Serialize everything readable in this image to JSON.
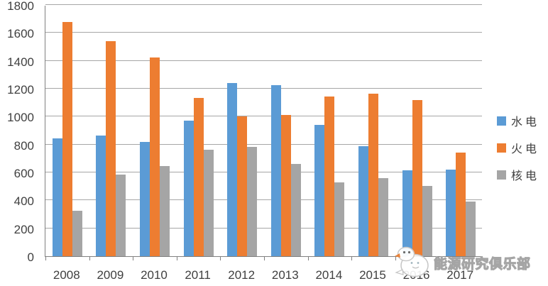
{
  "chart_data": {
    "type": "bar",
    "title": "",
    "xlabel": "",
    "ylabel": "",
    "categories": [
      "2008",
      "2009",
      "2010",
      "2011",
      "2012",
      "2013",
      "2014",
      "2015",
      "2016",
      "2017"
    ],
    "series": [
      {
        "key": "hydro",
        "name": "水电",
        "color": "#5B9BD5",
        "values": [
          845,
          862,
          818,
          970,
          1239,
          1223,
          941,
          789,
          615,
          618
        ]
      },
      {
        "key": "thermal",
        "name": "火电",
        "color": "#ED7D31",
        "values": [
          1680,
          1541,
          1426,
          1135,
          1001,
          1014,
          1143,
          1164,
          1119,
          740
        ]
      },
      {
        "key": "nuclear",
        "name": "核电",
        "color": "#A5A5A5",
        "values": [
          325,
          585,
          645,
          762,
          784,
          660,
          530,
          560,
          506,
          390
        ]
      }
    ],
    "ylim": [
      0,
      1800
    ],
    "ytick_step": 200,
    "yticks": [
      0,
      200,
      400,
      600,
      800,
      1000,
      1200,
      1400,
      1600,
      1800
    ],
    "grid": "horizontal",
    "legend_position": "right"
  },
  "watermark": {
    "text": "能源研究俱乐部",
    "icon": "chick-mascot-icon"
  },
  "colors": {
    "axis_line": "#808080",
    "gridline": "#a6a6a6",
    "axis_text": "#404040",
    "watermark_text": "#bdbdbd"
  }
}
